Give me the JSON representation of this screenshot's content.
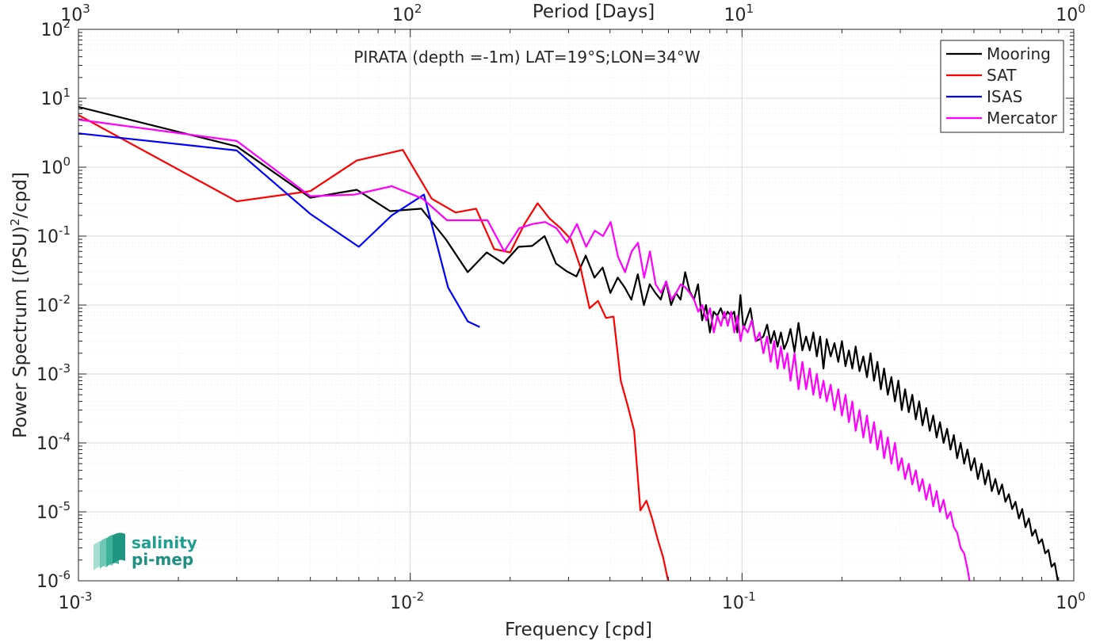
{
  "chart_data": {
    "type": "line",
    "title": "PIRATA (depth =-1m) LAT=19°S;LON=34°W",
    "xlabel": "Frequency [cpd]",
    "ylabel": "Power Spectrum [(PSU)²/cpd]",
    "top_xlabel": "Period [Days]",
    "xscale": "log",
    "yscale": "log",
    "xlim": [
      0.001,
      1
    ],
    "ylim": [
      1e-06,
      100
    ],
    "grid": true,
    "legend_position": "top-right",
    "x_ticks": [
      {
        "base": "10",
        "exp": "-3"
      },
      {
        "base": "10",
        "exp": "-2"
      },
      {
        "base": "10",
        "exp": "-1"
      },
      {
        "base": "10",
        "exp": "0"
      }
    ],
    "top_ticks": [
      {
        "base": "10",
        "exp": "3"
      },
      {
        "base": "10",
        "exp": "2"
      },
      {
        "base": "10",
        "exp": "1"
      },
      {
        "base": "10",
        "exp": "0"
      }
    ],
    "y_ticks": [
      {
        "base": "10",
        "exp": "-6"
      },
      {
        "base": "10",
        "exp": "-5"
      },
      {
        "base": "10",
        "exp": "-4"
      },
      {
        "base": "10",
        "exp": "-3"
      },
      {
        "base": "10",
        "exp": "-2"
      },
      {
        "base": "10",
        "exp": "-1"
      },
      {
        "base": "10",
        "exp": "0"
      },
      {
        "base": "10",
        "exp": "1"
      },
      {
        "base": "10",
        "exp": "2"
      }
    ],
    "series": [
      {
        "name": "Mooring",
        "color": "#000000",
        "x": [
          0.001,
          0.003,
          0.005,
          0.0069,
          0.0087,
          0.0108,
          0.0128,
          0.0149,
          0.017,
          0.0191,
          0.0212,
          0.0233,
          0.0254,
          0.0275,
          0.0296,
          0.0317,
          0.0338,
          0.0359,
          0.038,
          0.0401,
          0.0422,
          0.0443,
          0.0464,
          0.0485,
          0.0506,
          0.0527,
          0.0548,
          0.0569,
          0.059,
          0.0611,
          0.0632,
          0.0653,
          0.0674,
          0.0695,
          0.0716,
          0.0737,
          0.0758,
          0.0779,
          0.08,
          0.0821,
          0.0842,
          0.0863,
          0.0884,
          0.0905,
          0.0926,
          0.0947,
          0.0968,
          0.0989,
          0.101,
          0.103,
          0.106,
          0.108,
          0.11,
          0.113,
          0.116,
          0.119,
          0.122,
          0.125,
          0.128,
          0.131,
          0.134,
          0.137,
          0.14,
          0.144,
          0.148,
          0.152,
          0.156,
          0.16,
          0.164,
          0.168,
          0.172,
          0.176,
          0.18,
          0.185,
          0.19,
          0.195,
          0.2,
          0.205,
          0.21,
          0.215,
          0.22,
          0.226,
          0.232,
          0.238,
          0.244,
          0.25,
          0.256,
          0.262,
          0.268,
          0.275,
          0.282,
          0.289,
          0.296,
          0.303,
          0.31,
          0.318,
          0.326,
          0.334,
          0.342,
          0.35,
          0.359,
          0.368,
          0.377,
          0.386,
          0.395,
          0.405,
          0.415,
          0.425,
          0.435,
          0.445,
          0.456,
          0.467,
          0.478,
          0.49,
          0.502,
          0.514,
          0.527,
          0.54,
          0.553,
          0.566,
          0.58,
          0.594,
          0.608,
          0.622,
          0.637,
          0.652,
          0.667,
          0.683,
          0.699,
          0.715,
          0.732,
          0.749,
          0.766,
          0.784,
          0.802,
          0.82,
          0.838,
          0.857,
          0.876,
          0.895
        ],
        "y": [
          7.5,
          2.0,
          0.36,
          0.47,
          0.23,
          0.25,
          0.09,
          0.03,
          0.058,
          0.04,
          0.07,
          0.072,
          0.1,
          0.04,
          0.031,
          0.026,
          0.052,
          0.025,
          0.035,
          0.015,
          0.025,
          0.018,
          0.012,
          0.028,
          0.01,
          0.02,
          0.015,
          0.012,
          0.022,
          0.01,
          0.015,
          0.012,
          0.03,
          0.016,
          0.012,
          0.02,
          0.006,
          0.01,
          0.004,
          0.008,
          0.007,
          0.009,
          0.0065,
          0.008,
          0.007,
          0.008,
          0.004,
          0.014,
          0.0045,
          0.006,
          0.009,
          0.005,
          0.003,
          0.0032,
          0.0035,
          0.0052,
          0.0028,
          0.0042,
          0.0025,
          0.004,
          0.0023,
          0.003,
          0.0045,
          0.0021,
          0.0055,
          0.0022,
          0.0035,
          0.0022,
          0.004,
          0.0018,
          0.0035,
          0.0012,
          0.0032,
          0.0018,
          0.0028,
          0.0015,
          0.003,
          0.0013,
          0.0022,
          0.0012,
          0.0025,
          0.0011,
          0.0018,
          0.0009,
          0.002,
          0.0008,
          0.0015,
          0.0006,
          0.0012,
          0.0005,
          0.0009,
          0.0004,
          0.0008,
          0.0003,
          0.0006,
          0.00028,
          0.0005,
          0.00022,
          0.0004,
          0.00018,
          0.00032,
          0.00015,
          0.00025,
          0.00012,
          0.0002,
          0.0001,
          0.00016,
          8e-05,
          0.00013,
          6e-05,
          0.0001,
          5e-05,
          8e-05,
          4e-05,
          6e-05,
          3e-05,
          5e-05,
          2.5e-05,
          4e-05,
          2e-05,
          3e-05,
          1.8e-05,
          2.5e-05,
          1.4e-05,
          1.8e-05,
          1.1e-05,
          1.4e-05,
          8e-06,
          1.1e-05,
          6e-06,
          8e-06,
          4.5e-06,
          5.5e-06,
          3.5e-06,
          4e-06,
          2.5e-06,
          2.8e-06,
          1.6e-06,
          1.8e-06,
          1e-06
        ]
      },
      {
        "name": "SAT",
        "color": "#ff0000",
        "x": [
          0.001,
          0.003,
          0.005,
          0.0069,
          0.0095,
          0.0116,
          0.0137,
          0.0158,
          0.0179,
          0.02,
          0.0221,
          0.0242,
          0.0263,
          0.0284,
          0.0305,
          0.0326,
          0.0347,
          0.0368,
          0.0389,
          0.041,
          0.0431,
          0.0452,
          0.0473,
          0.0494,
          0.0515,
          0.0536,
          0.0557,
          0.0578,
          0.0599
        ],
        "y": [
          5.7,
          0.32,
          0.45,
          1.25,
          1.78,
          0.35,
          0.22,
          0.25,
          0.065,
          0.058,
          0.15,
          0.3,
          0.18,
          0.13,
          0.09,
          0.035,
          0.009,
          0.0115,
          0.0065,
          0.0068,
          0.0008,
          0.00035,
          0.00015,
          1.05e-05,
          1.45e-05,
          8e-06,
          4e-06,
          2.2e-06,
          1e-06
        ]
      },
      {
        "name": "ISAS",
        "color": "#0000ff",
        "x": [
          0.001,
          0.003,
          0.005,
          0.007,
          0.0088,
          0.011,
          0.013,
          0.0149,
          0.0162
        ],
        "y": [
          3.1,
          1.75,
          0.21,
          0.07,
          0.2,
          0.4,
          0.018,
          0.0058,
          0.0048
        ]
      },
      {
        "name": "Mercator",
        "color": "#ff00ff",
        "x": [
          0.001,
          0.003,
          0.005,
          0.0068,
          0.0088,
          0.0109,
          0.0129,
          0.015,
          0.0171,
          0.0192,
          0.0213,
          0.0234,
          0.0255,
          0.0276,
          0.0297,
          0.0318,
          0.0339,
          0.036,
          0.0381,
          0.0402,
          0.0423,
          0.0444,
          0.0465,
          0.0486,
          0.0507,
          0.0528,
          0.0549,
          0.057,
          0.0591,
          0.0612,
          0.0633,
          0.0654,
          0.0675,
          0.0696,
          0.0717,
          0.0738,
          0.0759,
          0.078,
          0.0801,
          0.0822,
          0.0843,
          0.0864,
          0.0885,
          0.0906,
          0.0927,
          0.0948,
          0.0969,
          0.099,
          0.101,
          0.104,
          0.107,
          0.11,
          0.113,
          0.116,
          0.119,
          0.122,
          0.125,
          0.128,
          0.131,
          0.134,
          0.137,
          0.14,
          0.144,
          0.148,
          0.152,
          0.156,
          0.16,
          0.164,
          0.168,
          0.172,
          0.176,
          0.18,
          0.185,
          0.19,
          0.195,
          0.2,
          0.205,
          0.21,
          0.215,
          0.22,
          0.226,
          0.232,
          0.238,
          0.244,
          0.25,
          0.256,
          0.262,
          0.268,
          0.275,
          0.282,
          0.289,
          0.296,
          0.303,
          0.31,
          0.318,
          0.326,
          0.334,
          0.342,
          0.35,
          0.359,
          0.368,
          0.377,
          0.386,
          0.395,
          0.405,
          0.415,
          0.425,
          0.435,
          0.445,
          0.456,
          0.467,
          0.478,
          0.485
        ],
        "y": [
          4.9,
          2.4,
          0.38,
          0.4,
          0.53,
          0.35,
          0.17,
          0.17,
          0.17,
          0.06,
          0.13,
          0.15,
          0.16,
          0.13,
          0.08,
          0.15,
          0.07,
          0.12,
          0.1,
          0.16,
          0.05,
          0.03,
          0.06,
          0.08,
          0.025,
          0.06,
          0.02,
          0.015,
          0.022,
          0.012,
          0.015,
          0.02,
          0.018,
          0.015,
          0.012,
          0.008,
          0.01,
          0.006,
          0.009,
          0.004,
          0.007,
          0.005,
          0.008,
          0.005,
          0.008,
          0.004,
          0.007,
          0.003,
          0.005,
          0.004,
          0.006,
          0.003,
          0.004,
          0.002,
          0.0035,
          0.0015,
          0.003,
          0.0012,
          0.0025,
          0.0012,
          0.002,
          0.0008,
          0.002,
          0.0006,
          0.0015,
          0.0006,
          0.0012,
          0.0005,
          0.001,
          0.00045,
          0.0008,
          0.0004,
          0.0007,
          0.0003,
          0.0006,
          0.00025,
          0.0005,
          0.0002,
          0.0004,
          0.00015,
          0.0003,
          0.00012,
          0.00025,
          0.0001,
          0.0002,
          8e-05,
          0.00015,
          6e-05,
          0.00012,
          5e-05,
          0.0001,
          4e-05,
          6e-05,
          3e-05,
          5e-05,
          2.5e-05,
          4e-05,
          2e-05,
          3e-05,
          1.5e-05,
          2.5e-05,
          1.2e-05,
          2e-05,
          1e-05,
          1.5e-05,
          8e-06,
          1e-05,
          6e-06,
          5e-06,
          3e-06,
          2.5e-06,
          1.5e-06,
          1e-06
        ]
      }
    ]
  },
  "logo": {
    "line1": "salinity",
    "line2": "pi-mep"
  }
}
